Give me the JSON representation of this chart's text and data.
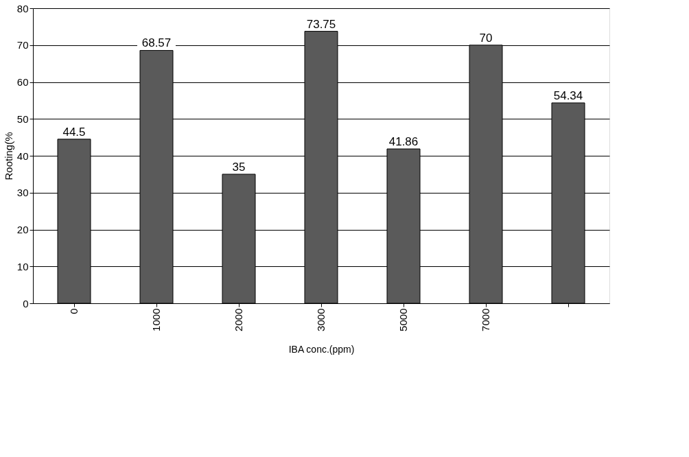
{
  "chart_data": {
    "type": "bar",
    "xlabel": "IBA conc.(ppm)",
    "ylabel": "Rooting(%",
    "categories": [
      "0",
      "1000",
      "2000",
      "3000",
      "5000",
      "7000",
      null
    ],
    "values": [
      44.5,
      68.57,
      35,
      73.75,
      41.86,
      70,
      54.34
    ],
    "color": "#5a5a5a",
    "ylim": [
      0,
      80
    ],
    "yticks": [
      0,
      10,
      20,
      30,
      40,
      50,
      60,
      70,
      80
    ],
    "grid": "y",
    "data_labels": true
  }
}
